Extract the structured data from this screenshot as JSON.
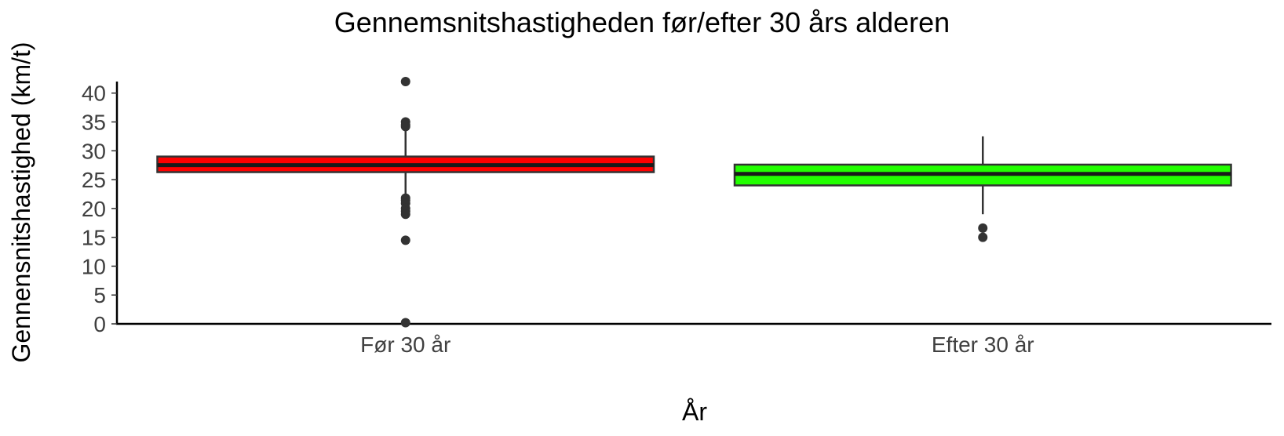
{
  "chart_data": {
    "type": "boxplot",
    "title": "Gennemsnitshastigheden før/efter 30 års alderen",
    "xlabel": "År",
    "ylabel": "Gennensnitshastighed (km/t)",
    "ylim": [
      0,
      42
    ],
    "yticks": [
      0,
      5,
      10,
      15,
      20,
      25,
      30,
      35,
      40
    ],
    "categories": [
      "Før 30 år",
      "Efter 30 år"
    ],
    "grid": false,
    "boxes": [
      {
        "category": "Før 30 år",
        "fill": "#ff0000",
        "whisker_low": 22.0,
        "q1": 26.3,
        "median": 27.5,
        "q3": 29.0,
        "whisker_high": 33.5,
        "outliers": [
          42.0,
          35.0,
          34.5,
          34.2,
          21.8,
          21.4,
          20.9,
          20.0,
          19.5,
          19.0,
          14.5,
          0.2
        ]
      },
      {
        "category": "Efter 30 år",
        "fill": "#22ff00",
        "whisker_low": 19.0,
        "q1": 24.0,
        "median": 26.0,
        "q3": 27.6,
        "whisker_high": 32.5,
        "outliers": [
          16.6,
          15.0
        ]
      }
    ]
  }
}
